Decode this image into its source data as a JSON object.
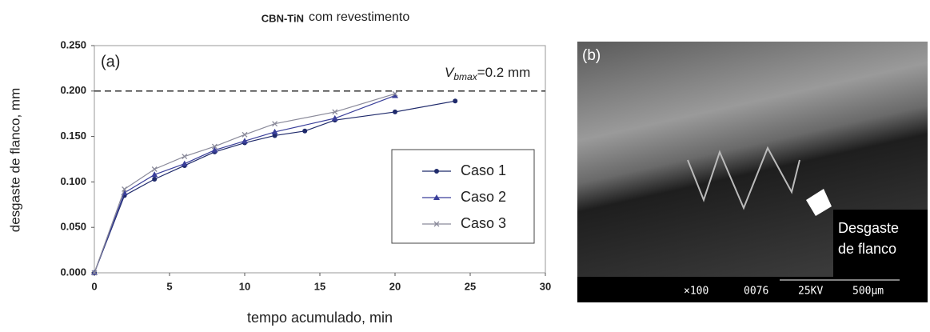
{
  "chart_data": {
    "type": "line",
    "title": "CBN-TiN",
    "subtitle": "com revestimento",
    "panel_label": "(a)",
    "xlabel": "tempo acumulado, min",
    "ylabel": "desgaste de flanco,  mm",
    "xlim": [
      0,
      30
    ],
    "xticks": [
      0,
      5,
      10,
      15,
      20,
      25,
      30
    ],
    "ylim": [
      0,
      0.25
    ],
    "yticks": [
      {
        "value": 0,
        "label": "0.000"
      },
      {
        "value": 0.05,
        "label": "0.050"
      },
      {
        "value": 0.1,
        "label": "0.100"
      },
      {
        "value": 0.15,
        "label": "0.150"
      },
      {
        "value": 0.2,
        "label": "0.200"
      },
      {
        "value": 0.25,
        "label": "0.250"
      }
    ],
    "reference_line": {
      "value": 0.2,
      "label_main": "V",
      "label_sub": "bmax",
      "label_rest": "=0.2 mm"
    },
    "legend": "right",
    "series": [
      {
        "name": "Caso 1",
        "color": "#1f2a6b",
        "marker": "circle",
        "x": [
          0,
          2,
          4,
          6,
          8,
          10,
          12,
          14,
          16,
          20,
          24
        ],
        "values": [
          0,
          0.085,
          0.103,
          0.118,
          0.133,
          0.143,
          0.151,
          0.156,
          0.168,
          0.177,
          0.189
        ]
      },
      {
        "name": "Caso 2",
        "color": "#3a3f9a",
        "marker": "triangle",
        "x": [
          0,
          2,
          4,
          6,
          8,
          10,
          12,
          16,
          20
        ],
        "values": [
          0,
          0.088,
          0.108,
          0.12,
          0.135,
          0.145,
          0.155,
          0.17,
          0.195
        ]
      },
      {
        "name": "Caso 3",
        "color": "#8a8a9a",
        "marker": "x",
        "x": [
          0,
          2,
          4,
          6,
          8,
          10,
          12,
          16,
          20
        ],
        "values": [
          0,
          0.092,
          0.114,
          0.128,
          0.139,
          0.152,
          0.164,
          0.177,
          0.197
        ]
      }
    ]
  },
  "photo": {
    "panel_label": "(b)",
    "caption_line1": "Desgaste",
    "caption_line2": "de flanco",
    "info": [
      "×100",
      "0076",
      "25KV",
      "500μm"
    ]
  }
}
